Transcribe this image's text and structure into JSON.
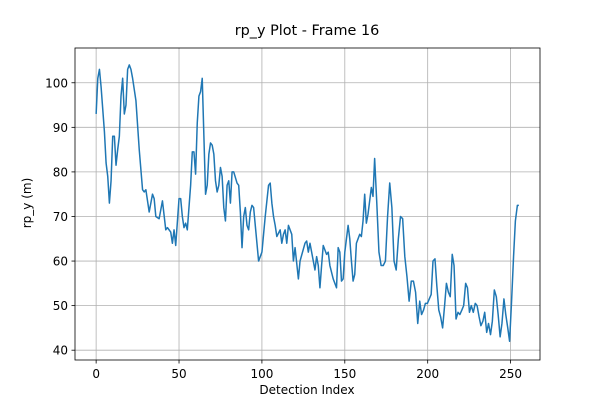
{
  "chart_data": {
    "type": "line",
    "title": "rp_y Plot - Frame 16",
    "xlabel": "Detection Index",
    "ylabel": "rp_y (m)",
    "grid": true,
    "xlim": [
      -12.75,
      267.75
    ],
    "xticks": [
      0,
      50,
      100,
      150,
      200,
      250
    ],
    "ylim": [
      37.8,
      107.8
    ],
    "yticks": [
      40,
      50,
      60,
      70,
      80,
      90,
      100
    ],
    "x": [
      0,
      1,
      2,
      3,
      5,
      6,
      7,
      8,
      9,
      10,
      11,
      12,
      13,
      14,
      15,
      16,
      17,
      18,
      19,
      20,
      21,
      22,
      24,
      26,
      28,
      29,
      30,
      32,
      34,
      35,
      36,
      38,
      40,
      42,
      43,
      45,
      46,
      47,
      48,
      50,
      51,
      52,
      53,
      54,
      55,
      57,
      58,
      59,
      60,
      61,
      62,
      63,
      64,
      65,
      66,
      67,
      68,
      69,
      70,
      71,
      72,
      73,
      74,
      75,
      76,
      77,
      78,
      79,
      80,
      81,
      82,
      83,
      85,
      86,
      87,
      88,
      89,
      90,
      91,
      92,
      93,
      94,
      95,
      96,
      98,
      100,
      101,
      102,
      104,
      105,
      106,
      107,
      108,
      109,
      111,
      112,
      113,
      114,
      115,
      116,
      118,
      119,
      120,
      121,
      122,
      123,
      126,
      127,
      128,
      129,
      130,
      132,
      133,
      134,
      135,
      136,
      137,
      139,
      140,
      141,
      143,
      145,
      146,
      147,
      148,
      149,
      150,
      152,
      153,
      154,
      155,
      156,
      157,
      159,
      160,
      161,
      162,
      163,
      164,
      166,
      167,
      168,
      169.3,
      170.6,
      171.9,
      173.2,
      174.5,
      175.8,
      177.1,
      178.4,
      179.7,
      181,
      182.3,
      183.6,
      184.9,
      186.2,
      187.5,
      188.8,
      190.1,
      191.4,
      192.7,
      194,
      195.2,
      196.3,
      197.5,
      198.6,
      199.8,
      202.1,
      203.2,
      204.4,
      205.5,
      206.7,
      207.8,
      209,
      210.2,
      211.3,
      212.5,
      213.6,
      214.8,
      215.9,
      217.1,
      218.3,
      219.4,
      220.6,
      221.7,
      222.9,
      224,
      225.2,
      226.3,
      227.5,
      228.7,
      229.8,
      231,
      232.1,
      233.3,
      234.4,
      235.6,
      236.7,
      237.9,
      239,
      240.2,
      241.4,
      242.5,
      243.7,
      244.8,
      246,
      247.1,
      248.3,
      249.4,
      250.6,
      251.8,
      252.9,
      254.1,
      255
    ],
    "series": [
      {
        "name": "rp_y",
        "color": "#1f77b4",
        "values": [
          93,
          101,
          103,
          99,
          89,
          82,
          79,
          73,
          78,
          88,
          88,
          81.5,
          85,
          88,
          97,
          101,
          93,
          95,
          103,
          104,
          103,
          101,
          96,
          85,
          76,
          75.5,
          76,
          71,
          75,
          74,
          70,
          69.5,
          73.5,
          67,
          67.5,
          66.5,
          64,
          67,
          63.5,
          74,
          74,
          70,
          67.5,
          68.5,
          67,
          77,
          84.5,
          84.5,
          79.5,
          91,
          97,
          98,
          101,
          88,
          75,
          77,
          84,
          86.5,
          86,
          84,
          78,
          75.5,
          77,
          81,
          79,
          72,
          69,
          77,
          78,
          73,
          80,
          80,
          77.5,
          77,
          71,
          63,
          70,
          72,
          68,
          67,
          71,
          72.5,
          72,
          68,
          60,
          62,
          66,
          70,
          77,
          77.5,
          73,
          70,
          68,
          65.5,
          67,
          64,
          66,
          67,
          64,
          68,
          66,
          60,
          63,
          59.5,
          56,
          60,
          64,
          64.5,
          62,
          64,
          62,
          58,
          61,
          59,
          54,
          59,
          63.5,
          61.5,
          62,
          59,
          56,
          54,
          63,
          62,
          55.5,
          56,
          62,
          68,
          65,
          60,
          55.5,
          57,
          64,
          66,
          65.5,
          69,
          75,
          68.5,
          70.5,
          76.5,
          74.5,
          83,
          73,
          62,
          59,
          59,
          60,
          70,
          77.5,
          72,
          60,
          58,
          65,
          70,
          69.5,
          61,
          56.5,
          51,
          55.5,
          55.5,
          53,
          46,
          51,
          48,
          49,
          50.5,
          50.5,
          52.5,
          60,
          60.5,
          54.5,
          49,
          47.5,
          45,
          50,
          55,
          53,
          52,
          61.5,
          59,
          47,
          48.5,
          48,
          49,
          50,
          55,
          54,
          48.5,
          50,
          48.5,
          50.5,
          50,
          47.5,
          45.5,
          46.5,
          48.5,
          44,
          46,
          43.5,
          46.5,
          53.5,
          52,
          48,
          43,
          46,
          51.5,
          48,
          45,
          42,
          51,
          61,
          69,
          72.5,
          72.5
        ]
      }
    ]
  }
}
